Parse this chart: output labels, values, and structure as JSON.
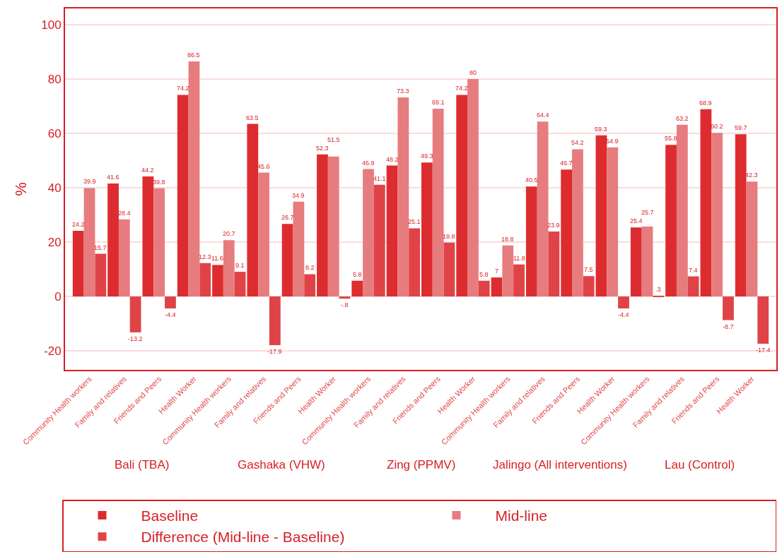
{
  "chart_data": {
    "type": "bar",
    "ylabel": "%",
    "categories": [
      "Community Health workers",
      "Family and relatives",
      "Friends and Peers",
      "Health Worker",
      "Community Health workers",
      "Family and relatives",
      "Friends and Peers",
      "Health Worker",
      "Community Health workers",
      "Family and relatives",
      "Friends and Peers",
      "Health Worker",
      "Community Health workers",
      "Family and relatives",
      "Friends and Peers",
      "Health Worker",
      "Community Health workers",
      "Family and relatives",
      "Friends and Peers",
      "Health Worker"
    ],
    "series": [
      {
        "name": "Baseline",
        "color": "#dd2c2f",
        "values": [
          24.2,
          41.6,
          44.2,
          74.2,
          11.6,
          63.5,
          26.7,
          52.3,
          5.8,
          48.2,
          49.3,
          74.2,
          7,
          40.5,
          46.7,
          59.3,
          25.4,
          55.8,
          68.9,
          59.7
        ],
        "value_labels": [
          "24.2",
          "41.6",
          "44.2",
          "74.2",
          "11.6",
          "63.5",
          "26.7",
          "52.3",
          "5.8",
          "48.2",
          "49.3",
          "74.2",
          "7",
          "40.5",
          "46.7",
          "59.3",
          "25.4",
          "55.8",
          "68.9",
          "59.7"
        ]
      },
      {
        "name": "Mid-line",
        "color": "#e77c7e",
        "values": [
          39.9,
          28.4,
          39.8,
          86.5,
          20.7,
          45.6,
          34.9,
          51.5,
          46.9,
          73.3,
          69.1,
          80,
          18.8,
          64.4,
          54.2,
          54.9,
          25.7,
          63.2,
          60.2,
          42.3
        ],
        "value_labels": [
          "39.9",
          "28.4",
          "39.8",
          "86.5",
          "20.7",
          "45.6",
          "34.9",
          "51.5",
          "46.9",
          "73.3",
          "69.1",
          "80",
          "18.8",
          "64.4",
          "54.2",
          "54.9",
          "25.7",
          "63.2",
          "60.2",
          "42.3"
        ]
      },
      {
        "name": "Difference (Mid-line - Baseline)",
        "color": "#e04347",
        "values": [
          15.7,
          -13.2,
          -4.4,
          12.3,
          9.1,
          -17.9,
          8.2,
          -0.8,
          41.1,
          25.1,
          19.8,
          5.8,
          11.8,
          23.9,
          7.5,
          -4.4,
          0.3,
          7.4,
          -8.7,
          -17.4
        ],
        "value_labels": [
          "15.7",
          "-13.2",
          "-4.4",
          "12.3",
          "9.1",
          "-17.9",
          "8.2",
          "-.8",
          "41.1",
          "25.1",
          "19.8",
          "5.8",
          "11.8",
          "23.9",
          "7.5",
          "-4.4",
          ".3",
          "7.4",
          "-8.7",
          "-17.4"
        ]
      }
    ],
    "annotations": [
      "Bali (TBA)",
      "Gashaka (VHW)",
      "Zing (PPMV)",
      "Jalingo (All interventions)",
      "Lau (Control)"
    ],
    "ylim": [
      -27,
      106
    ],
    "yticks": [
      -20,
      0,
      20,
      40,
      60,
      80,
      100
    ],
    "grid": "y",
    "legend": "bottom"
  }
}
